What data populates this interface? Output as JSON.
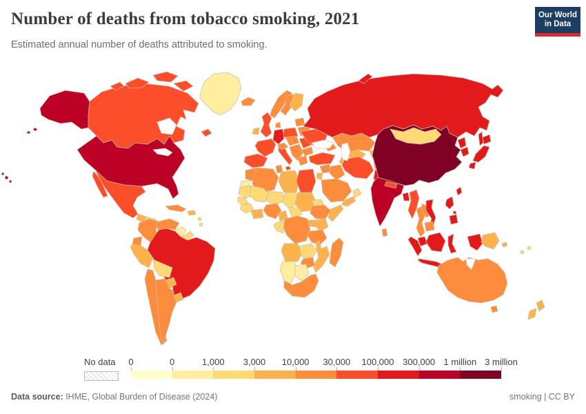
{
  "header": {
    "title": "Number of deaths from tobacco smoking, 2021",
    "subtitle": "Estimated annual number of deaths attributed to smoking."
  },
  "logo": {
    "line1": "Our World",
    "line2": "in Data",
    "bg": "#1d3d63",
    "accent": "#dc2a2f"
  },
  "legend": {
    "no_data_label": "No data",
    "tick_labels": [
      "0",
      "0",
      "1,000",
      "3,000",
      "10,000",
      "30,000",
      "100,000",
      "300,000",
      "1 million",
      "3 million"
    ]
  },
  "footer": {
    "source_label": "Data source:",
    "source_text": " IHME, Global Burden of Disease (2024)",
    "right_text": "smoking | CC BY"
  },
  "chart_data": {
    "type": "heatmap",
    "title": "Number of deaths from tobacco smoking, 2021",
    "subtitle": "Estimated annual number of deaths attributed to smoking.",
    "year": "2021",
    "legend_tick_labels": [
      "0",
      "0",
      "1,000",
      "3,000",
      "10,000",
      "30,000",
      "100,000",
      "300,000",
      "1 million",
      "3 million"
    ],
    "no_data_label": "No data",
    "bins": [
      {
        "range": "0",
        "color": "#ffffcc"
      },
      {
        "range": "0–1,000",
        "color": "#ffeda0"
      },
      {
        "range": "1,000–3,000",
        "color": "#fed976"
      },
      {
        "range": "3,000–10,000",
        "color": "#feb24c"
      },
      {
        "range": "10,000–30,000",
        "color": "#fd8d3c"
      },
      {
        "range": "30,000–100,000",
        "color": "#fc4e2a"
      },
      {
        "range": "100,000–300,000",
        "color": "#e31a1c"
      },
      {
        "range": "300,000–1 million",
        "color": "#bd0026"
      },
      {
        "range": "1–3 million",
        "color": "#800026"
      }
    ],
    "regions": [
      {
        "id": "usa",
        "name": "United States",
        "bin": 7
      },
      {
        "id": "canada",
        "name": "Canada",
        "bin": 5
      },
      {
        "id": "greenland",
        "name": "Greenland",
        "bin": 1
      },
      {
        "id": "mexico",
        "name": "Mexico",
        "bin": 5
      },
      {
        "id": "guatemala",
        "name": "Guatemala",
        "bin": 3
      },
      {
        "id": "honduras",
        "name": "Honduras/Nicaragua",
        "bin": 2
      },
      {
        "id": "panama",
        "name": "Costa Rica/Panama",
        "bin": 3
      },
      {
        "id": "cuba",
        "name": "Cuba",
        "bin": 4
      },
      {
        "id": "dominican-republic",
        "name": "Dominican Republic",
        "bin": 3
      },
      {
        "id": "lesser-antilles",
        "name": "Lesser Antilles",
        "bin": 2
      },
      {
        "id": "colombia",
        "name": "Colombia",
        "bin": 4
      },
      {
        "id": "venezuela",
        "name": "Venezuela",
        "bin": 4
      },
      {
        "id": "guyana",
        "name": "Guyana",
        "bin": 1
      },
      {
        "id": "suriname",
        "name": "Suriname",
        "bin": 2
      },
      {
        "id": "ecuador",
        "name": "Ecuador",
        "bin": 4
      },
      {
        "id": "peru",
        "name": "Peru",
        "bin": 3
      },
      {
        "id": "brazil",
        "name": "Brazil",
        "bin": 6
      },
      {
        "id": "bolivia",
        "name": "Bolivia",
        "bin": 2
      },
      {
        "id": "paraguay",
        "name": "Paraguay",
        "bin": 3
      },
      {
        "id": "uruguay",
        "name": "Uruguay",
        "bin": 3
      },
      {
        "id": "chile",
        "name": "Chile",
        "bin": 4
      },
      {
        "id": "argentina",
        "name": "Argentina",
        "bin": 4
      },
      {
        "id": "iceland",
        "name": "Iceland",
        "bin": 4
      },
      {
        "id": "uk",
        "name": "United Kingdom",
        "bin": 5
      },
      {
        "id": "ireland",
        "name": "Ireland",
        "bin": 3
      },
      {
        "id": "norway",
        "name": "Norway",
        "bin": 4
      },
      {
        "id": "sweden",
        "name": "Sweden",
        "bin": 4
      },
      {
        "id": "finland",
        "name": "Finland",
        "bin": 3
      },
      {
        "id": "denmark",
        "name": "Denmark",
        "bin": 4
      },
      {
        "id": "baltics",
        "name": "Baltic states",
        "bin": 4
      },
      {
        "id": "belarus",
        "name": "Belarus",
        "bin": 4
      },
      {
        "id": "poland",
        "name": "Poland",
        "bin": 5
      },
      {
        "id": "germany",
        "name": "Germany",
        "bin": 6
      },
      {
        "id": "france",
        "name": "France",
        "bin": 5
      },
      {
        "id": "spain",
        "name": "Spain",
        "bin": 5
      },
      {
        "id": "italy",
        "name": "Italy",
        "bin": 5
      },
      {
        "id": "austria",
        "name": "Austria/Switzerland",
        "bin": 4
      },
      {
        "id": "czech-hungary",
        "name": "Central Europe",
        "bin": 4
      },
      {
        "id": "balkans",
        "name": "Western Balkans",
        "bin": 4
      },
      {
        "id": "romania",
        "name": "Romania",
        "bin": 5
      },
      {
        "id": "bulgaria",
        "name": "Bulgaria",
        "bin": 4
      },
      {
        "id": "greece",
        "name": "Greece",
        "bin": 4
      },
      {
        "id": "ukraine",
        "name": "Ukraine",
        "bin": 5
      },
      {
        "id": "russia",
        "name": "Russia",
        "bin": 6
      },
      {
        "id": "kazakhstan",
        "name": "Kazakhstan",
        "bin": 4
      },
      {
        "id": "uzbekistan",
        "name": "Uzbekistan",
        "bin": 3
      },
      {
        "id": "turkmenistan",
        "name": "Turkmenistan",
        "bin": 3
      },
      {
        "id": "kyrgyzstan",
        "name": "Kyrgyzstan/Tajikistan",
        "bin": 3
      },
      {
        "id": "caucasus",
        "name": "Caucasus",
        "bin": 4
      },
      {
        "id": "turkey",
        "name": "Turkey",
        "bin": 5
      },
      {
        "id": "syria",
        "name": "Syria",
        "bin": 4
      },
      {
        "id": "levant",
        "name": "Israel/Jordan",
        "bin": 3
      },
      {
        "id": "iraq",
        "name": "Iraq",
        "bin": 4
      },
      {
        "id": "iran",
        "name": "Iran",
        "bin": 5
      },
      {
        "id": "afghanistan",
        "name": "Afghanistan",
        "bin": 4
      },
      {
        "id": "pakistan",
        "name": "Pakistan",
        "bin": 6
      },
      {
        "id": "saudi-arabia",
        "name": "Saudi Arabia",
        "bin": 4
      },
      {
        "id": "yemen",
        "name": "Yemen",
        "bin": 3
      },
      {
        "id": "oman",
        "name": "Oman",
        "bin": 2
      },
      {
        "id": "morocco",
        "name": "Morocco",
        "bin": 4
      },
      {
        "id": "western-sahara",
        "name": "Western Sahara",
        "bin": 1
      },
      {
        "id": "algeria",
        "name": "Algeria",
        "bin": 4
      },
      {
        "id": "tunisia",
        "name": "Tunisia",
        "bin": 4
      },
      {
        "id": "libya",
        "name": "Libya",
        "bin": 3
      },
      {
        "id": "egypt",
        "name": "Egypt",
        "bin": 5
      },
      {
        "id": "mauritania",
        "name": "Mauritania",
        "bin": 2
      },
      {
        "id": "mali",
        "name": "Mali",
        "bin": 2
      },
      {
        "id": "niger",
        "name": "Niger",
        "bin": 2
      },
      {
        "id": "chad",
        "name": "Chad",
        "bin": 2
      },
      {
        "id": "sudan",
        "name": "Sudan",
        "bin": 3
      },
      {
        "id": "senegal",
        "name": "Senegal",
        "bin": 2
      },
      {
        "id": "guinea",
        "name": "Guinea",
        "bin": 2
      },
      {
        "id": "ghana",
        "name": "Ghana",
        "bin": 3
      },
      {
        "id": "nigeria",
        "name": "Nigeria",
        "bin": 4
      },
      {
        "id": "cameroon",
        "name": "Cameroon",
        "bin": 3
      },
      {
        "id": "central-african-republic",
        "name": "Central African Republic",
        "bin": 2
      },
      {
        "id": "eritrea",
        "name": "Eritrea",
        "bin": 2
      },
      {
        "id": "ethiopia",
        "name": "Ethiopia",
        "bin": 4
      },
      {
        "id": "somalia",
        "name": "Somalia",
        "bin": 3
      },
      {
        "id": "kenya",
        "name": "Kenya",
        "bin": 3
      },
      {
        "id": "uganda",
        "name": "Uganda",
        "bin": 3
      },
      {
        "id": "drc",
        "name": "Democratic Republic of Congo",
        "bin": 4
      },
      {
        "id": "congo",
        "name": "Republic of the Congo",
        "bin": 2
      },
      {
        "id": "tanzania",
        "name": "Tanzania",
        "bin": 4
      },
      {
        "id": "angola",
        "name": "Angola",
        "bin": 3
      },
      {
        "id": "zambia",
        "name": "Zambia",
        "bin": 2
      },
      {
        "id": "malawi",
        "name": "Malawi",
        "bin": 3
      },
      {
        "id": "mozambique",
        "name": "Mozambique",
        "bin": 3
      },
      {
        "id": "zimbabwe",
        "name": "Zimbabwe",
        "bin": 4
      },
      {
        "id": "namibia",
        "name": "Namibia",
        "bin": 1
      },
      {
        "id": "botswana",
        "name": "Botswana",
        "bin": 1
      },
      {
        "id": "south-africa",
        "name": "South Africa",
        "bin": 4
      },
      {
        "id": "madagascar",
        "name": "Madagascar",
        "bin": 4
      },
      {
        "id": "china",
        "name": "China",
        "bin": 8
      },
      {
        "id": "mongolia",
        "name": "Mongolia",
        "bin": 2
      },
      {
        "id": "india",
        "name": "India",
        "bin": 7
      },
      {
        "id": "sri-lanka",
        "name": "Sri Lanka",
        "bin": 4
      },
      {
        "id": "nepal",
        "name": "Nepal",
        "bin": 5
      },
      {
        "id": "bangladesh",
        "name": "Bangladesh",
        "bin": 6
      },
      {
        "id": "myanmar",
        "name": "Myanmar",
        "bin": 5
      },
      {
        "id": "thailand",
        "name": "Thailand",
        "bin": 4
      },
      {
        "id": "laos",
        "name": "Laos",
        "bin": 4
      },
      {
        "id": "vietnam",
        "name": "Vietnam",
        "bin": 6
      },
      {
        "id": "cambodia",
        "name": "Cambodia",
        "bin": 4
      },
      {
        "id": "malaysia",
        "name": "Malaysia",
        "bin": 6
      },
      {
        "id": "indonesia",
        "name": "Indonesia",
        "bin": 6
      },
      {
        "id": "papua-new-guinea",
        "name": "Papua New Guinea",
        "bin": 3
      },
      {
        "id": "philippines",
        "name": "Philippines",
        "bin": 6
      },
      {
        "id": "taiwan",
        "name": "Taiwan",
        "bin": 6
      },
      {
        "id": "north-korea",
        "name": "North Korea",
        "bin": 6
      },
      {
        "id": "south-korea",
        "name": "South Korea",
        "bin": 6
      },
      {
        "id": "japan",
        "name": "Japan",
        "bin": 6
      },
      {
        "id": "australia",
        "name": "Australia",
        "bin": 4
      },
      {
        "id": "new-zealand",
        "name": "New Zealand",
        "bin": 3
      },
      {
        "id": "fiji",
        "name": "Fiji",
        "bin": 2
      }
    ]
  }
}
